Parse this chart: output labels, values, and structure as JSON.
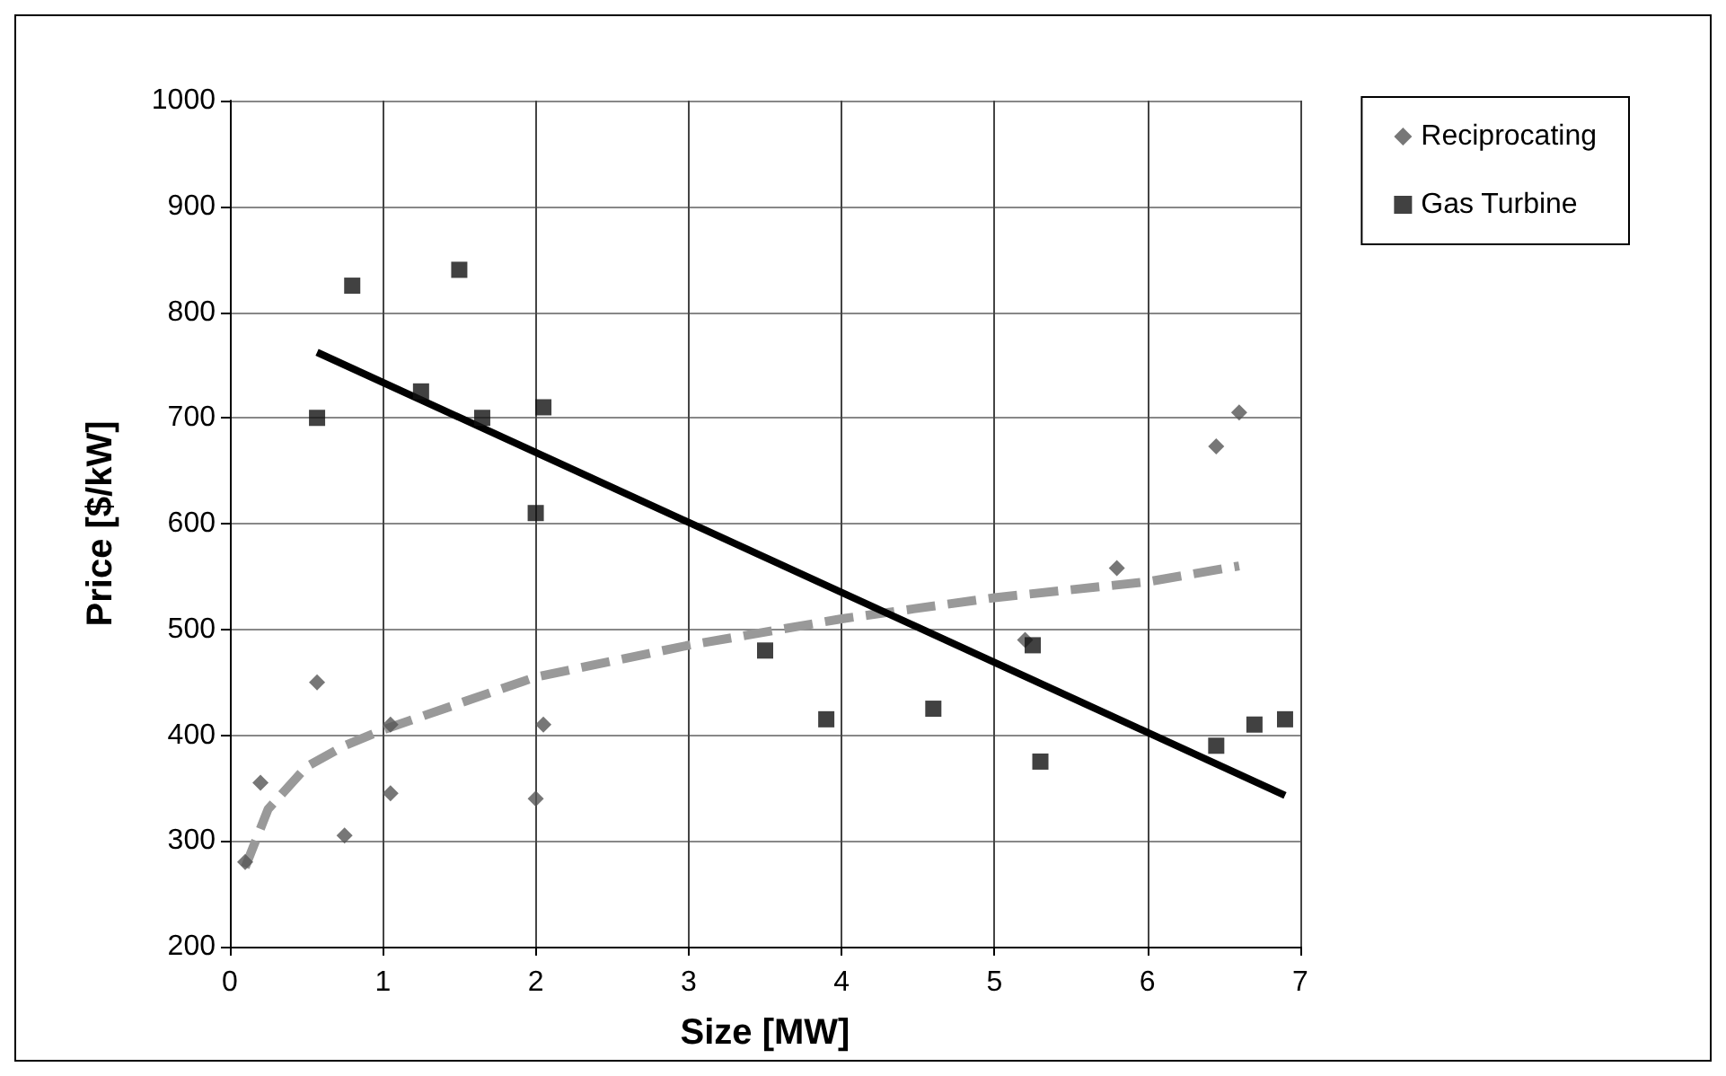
{
  "chart_data": {
    "type": "scatter",
    "xlabel": "Size [MW]",
    "ylabel": "Price [$/kW]",
    "xlim": [
      0,
      7
    ],
    "xticks": [
      0,
      1,
      2,
      3,
      4,
      5,
      6,
      7
    ],
    "ylim": [
      200,
      1000
    ],
    "yticks": [
      200,
      300,
      400,
      500,
      600,
      700,
      800,
      900,
      1000
    ],
    "grid": true,
    "legend": "top right",
    "series": [
      {
        "name": "Reciprocating",
        "type": "scatter",
        "marker": "diamond",
        "color": "#555555",
        "x": [
          0.1,
          0.2,
          0.57,
          0.75,
          1.05,
          1.05,
          2.0,
          2.05,
          5.2,
          5.8,
          6.45,
          6.6
        ],
        "values": [
          280,
          355,
          450,
          305,
          345,
          410,
          340,
          410,
          490,
          558,
          673,
          705
        ]
      },
      {
        "name": "Gas Turbine",
        "type": "scatter",
        "marker": "square",
        "color": "#111111",
        "x": [
          0.57,
          0.8,
          1.25,
          1.5,
          1.65,
          2.0,
          2.05,
          3.5,
          3.9,
          4.6,
          5.25,
          5.3,
          6.45,
          6.7,
          6.9
        ],
        "values": [
          700,
          825,
          725,
          840,
          700,
          610,
          710,
          480,
          415,
          425,
          485,
          375,
          390,
          410,
          415
        ]
      },
      {
        "type": "line",
        "line_style": "dashed",
        "marker": "none",
        "color": "#999999",
        "x": [
          0.1,
          0.25,
          0.5,
          0.75,
          1,
          2,
          3,
          4,
          5,
          6,
          6.6
        ],
        "values": [
          275,
          330,
          370,
          390,
          405,
          455,
          485,
          510,
          530,
          545,
          560
        ]
      },
      {
        "type": "line",
        "line_style": "solid",
        "marker": "none",
        "color": "#000000",
        "x": [
          0.57,
          6.9
        ],
        "values": [
          762,
          343
        ]
      }
    ]
  }
}
